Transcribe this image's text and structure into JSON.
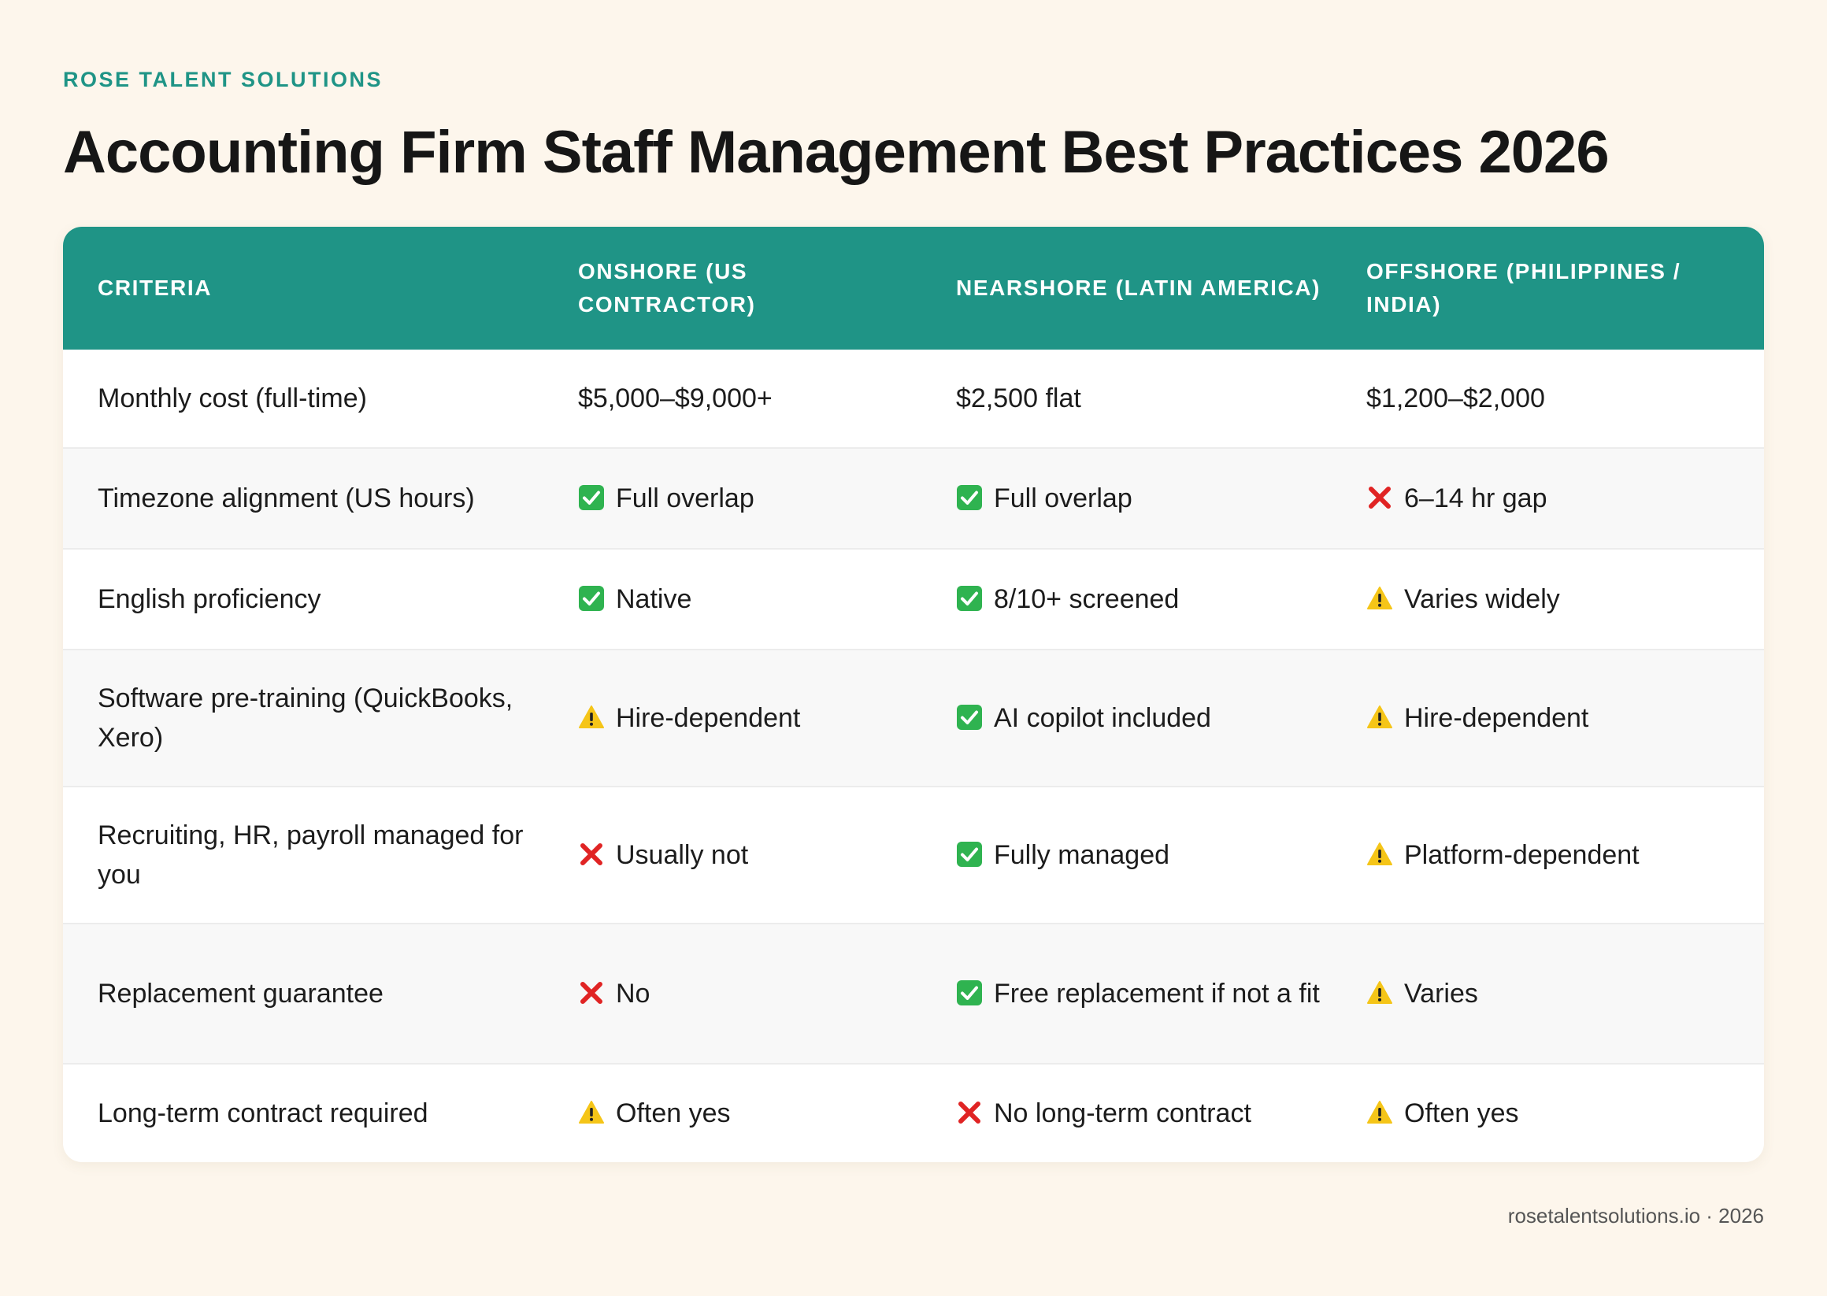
{
  "brand": "ROSE TALENT SOLUTIONS",
  "title": "Accounting Firm Staff Management Best Practices 2026",
  "colors": {
    "accent": "#1f9486",
    "background": "#fdf6ec",
    "check": "#2fb350",
    "cross": "#e02424",
    "warning": "#f5c518"
  },
  "table": {
    "headers": [
      "CRITERIA",
      "ONSHORE (US CONTRACTOR)",
      "NEARSHORE (LATIN AMERICA)",
      "OFFSHORE (PHILIPPINES / INDIA)"
    ],
    "rows": [
      {
        "criteria": "Monthly cost (full-time)",
        "cells": [
          {
            "icon": "",
            "text": "$5,000–$9,000+"
          },
          {
            "icon": "",
            "text": "$2,500 flat"
          },
          {
            "icon": "",
            "text": "$1,200–$2,000"
          }
        ]
      },
      {
        "criteria": "Timezone alignment (US hours)",
        "cells": [
          {
            "icon": "check-icon",
            "text": "Full overlap"
          },
          {
            "icon": "check-icon",
            "text": "Full overlap"
          },
          {
            "icon": "cross-icon",
            "text": "6–14 hr gap"
          }
        ]
      },
      {
        "criteria": "English proficiency",
        "cells": [
          {
            "icon": "check-icon",
            "text": "Native"
          },
          {
            "icon": "check-icon",
            "text": "8/10+ screened"
          },
          {
            "icon": "warning-icon",
            "text": "Varies widely"
          }
        ]
      },
      {
        "criteria": "Software pre-training (QuickBooks, Xero)",
        "cells": [
          {
            "icon": "warning-icon",
            "text": "Hire-dependent"
          },
          {
            "icon": "check-icon",
            "text": "AI copilot included"
          },
          {
            "icon": "warning-icon",
            "text": "Hire-dependent"
          }
        ]
      },
      {
        "criteria": "Recruiting, HR, payroll managed for you",
        "cells": [
          {
            "icon": "cross-icon",
            "text": "Usually not"
          },
          {
            "icon": "check-icon",
            "text": "Fully managed"
          },
          {
            "icon": "warning-icon",
            "text": "Platform-dependent"
          }
        ]
      },
      {
        "criteria": "Replacement guarantee",
        "cells": [
          {
            "icon": "cross-icon",
            "text": "No"
          },
          {
            "icon": "check-icon",
            "text": "Free replacement if not a fit"
          },
          {
            "icon": "warning-icon",
            "text": "Varies"
          }
        ]
      },
      {
        "criteria": "Long-term contract required",
        "cells": [
          {
            "icon": "warning-icon",
            "text": "Often yes"
          },
          {
            "icon": "cross-icon",
            "text": "No long-term contract"
          },
          {
            "icon": "warning-icon",
            "text": "Often yes"
          }
        ]
      }
    ]
  },
  "footer": "rosetalentsolutions.io · 2026"
}
